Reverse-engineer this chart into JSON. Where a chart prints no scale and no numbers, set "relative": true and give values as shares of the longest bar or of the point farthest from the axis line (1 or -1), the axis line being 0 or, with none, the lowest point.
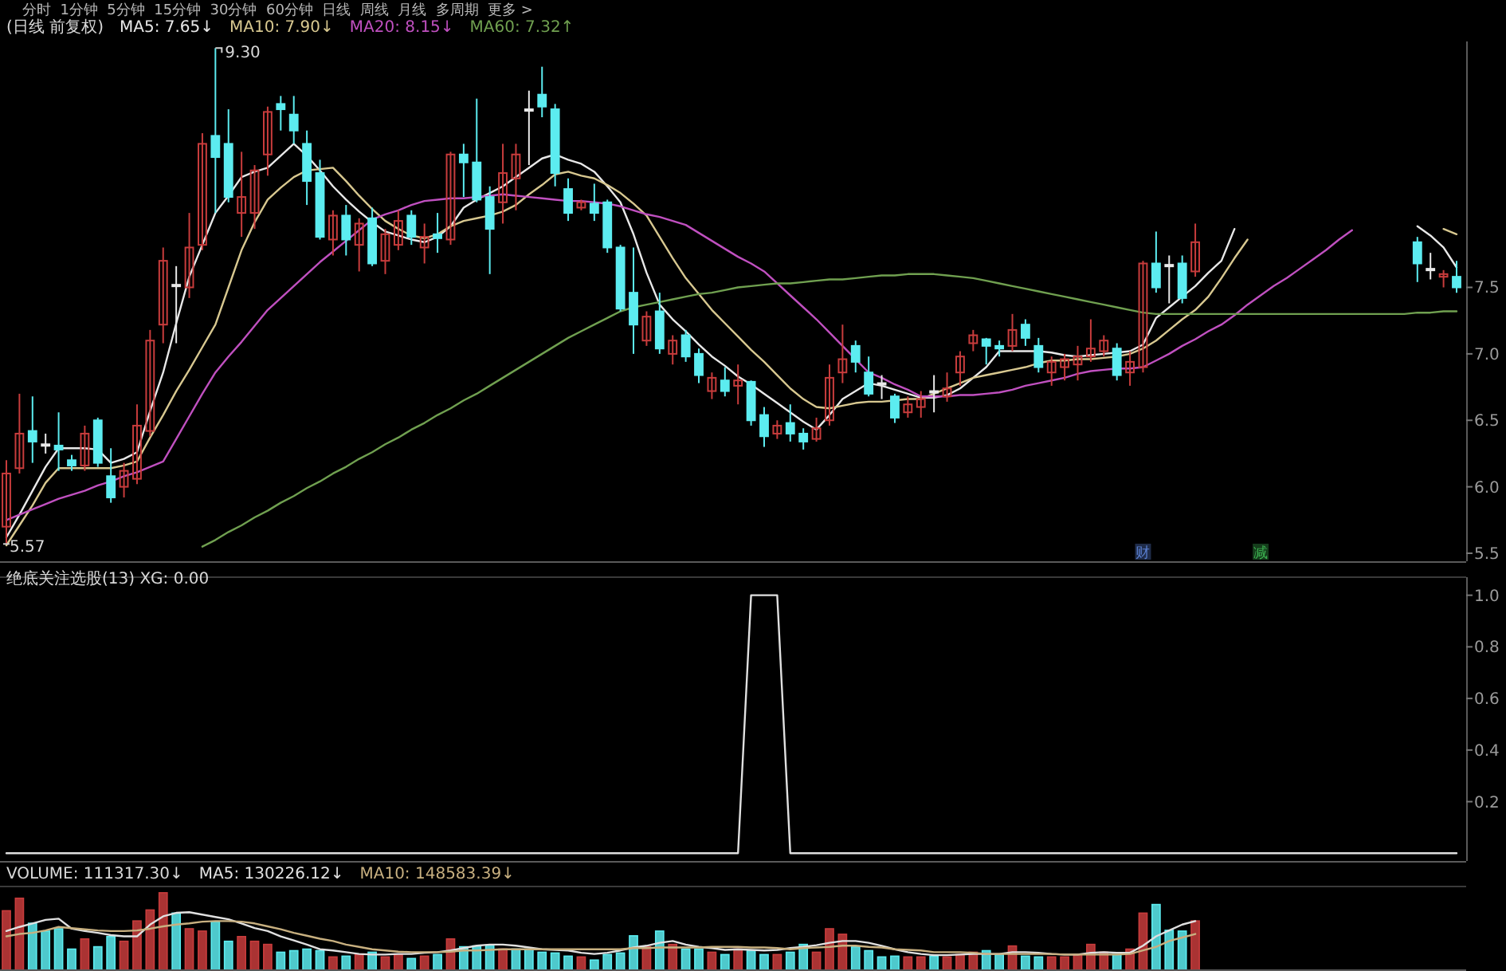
{
  "chart_data": [
    {
      "type": "candlestick",
      "title": "(日线 前复权)",
      "subtitle": "分时  1分钟  5分钟  15分钟  30分钟  60分钟  日线  周线  月线  多周期  更多 >",
      "legend": "top left",
      "tick_labels": "y",
      "categories": [
        null,
        null,
        null,
        null,
        null,
        null,
        null,
        null,
        null,
        null,
        null,
        null,
        null,
        null,
        null,
        null,
        null,
        null,
        null,
        null,
        null,
        null,
        null,
        null,
        null,
        null,
        null,
        null,
        null,
        null,
        null,
        null,
        null,
        null,
        null,
        null,
        null,
        null,
        null,
        null,
        null,
        null,
        null,
        null,
        null,
        null,
        null,
        null,
        null,
        null,
        null,
        null,
        null,
        null,
        null,
        null,
        null,
        null,
        null,
        null,
        null,
        null,
        null,
        null,
        null,
        null,
        null,
        null,
        null,
        null,
        null,
        null,
        null,
        null,
        null,
        null,
        null,
        null,
        null,
        null,
        null,
        null,
        null,
        null,
        null,
        null,
        null,
        null,
        null,
        null,
        null,
        null,
        null,
        null,
        null,
        null,
        null,
        null,
        null,
        null,
        null,
        null,
        null,
        null,
        null,
        null,
        null,
        null,
        null,
        null,
        null,
        null
      ],
      "ylim": [
        5.44,
        9.35
      ],
      "yticks": [
        5.5,
        {
          "value": 6,
          "label": "6.0"
        },
        6.5,
        {
          "value": 7,
          "label": "7.0"
        },
        7.5
      ],
      "ohlc": [
        [
          5.7,
          6.2,
          5.57,
          6.1
        ],
        [
          6.14,
          6.7,
          6.1,
          6.4
        ],
        [
          6.42,
          6.68,
          6.18,
          6.34
        ],
        [
          6.32,
          6.4,
          6.25,
          6.32
        ],
        [
          6.31,
          6.56,
          6.12,
          6.28
        ],
        [
          6.2,
          6.24,
          6.12,
          6.16
        ],
        [
          6.16,
          6.46,
          6.12,
          6.4
        ],
        [
          6.5,
          6.52,
          6.15,
          6.18
        ],
        [
          6.08,
          6.29,
          5.88,
          5.92
        ],
        [
          6.0,
          6.18,
          5.92,
          6.12
        ],
        [
          6.06,
          6.62,
          6.02,
          6.46
        ],
        [
          6.42,
          7.18,
          6.38,
          7.1
        ],
        [
          7.22,
          7.8,
          7.08,
          7.7
        ],
        [
          7.52,
          7.66,
          7.08,
          7.52
        ],
        [
          7.5,
          8.06,
          7.42,
          7.8
        ],
        [
          7.82,
          8.66,
          7.78,
          8.58
        ],
        [
          8.64,
          9.3,
          8.06,
          8.48
        ],
        [
          8.58,
          8.84,
          8.14,
          8.18
        ],
        [
          8.06,
          8.52,
          7.88,
          8.18
        ],
        [
          8.06,
          8.42,
          7.94,
          8.38
        ],
        [
          8.5,
          8.86,
          8.34,
          8.82
        ],
        [
          8.88,
          8.94,
          8.68,
          8.84
        ],
        [
          8.8,
          8.94,
          8.58,
          8.68
        ],
        [
          8.58,
          8.68,
          8.12,
          8.3
        ],
        [
          8.36,
          8.46,
          7.86,
          7.88
        ],
        [
          7.86,
          8.08,
          7.74,
          8.04
        ],
        [
          8.04,
          8.12,
          7.74,
          7.86
        ],
        [
          7.82,
          8.02,
          7.62,
          7.98
        ],
        [
          8.02,
          8.1,
          7.66,
          7.68
        ],
        [
          7.7,
          7.94,
          7.6,
          7.9
        ],
        [
          7.82,
          8.08,
          7.78,
          8.0
        ],
        [
          8.04,
          8.08,
          7.82,
          7.88
        ],
        [
          7.8,
          7.98,
          7.68,
          7.88
        ],
        [
          7.9,
          8.06,
          7.76,
          7.87
        ],
        [
          7.86,
          8.52,
          7.82,
          8.5
        ],
        [
          8.5,
          8.58,
          8.18,
          8.44
        ],
        [
          8.44,
          8.92,
          8.14,
          8.16
        ],
        [
          8.18,
          8.26,
          7.6,
          7.94
        ],
        [
          8.14,
          8.58,
          7.98,
          8.36
        ],
        [
          8.32,
          8.58,
          8.08,
          8.5
        ],
        [
          8.84,
          8.98,
          8.42,
          8.84
        ],
        [
          8.95,
          9.16,
          8.78,
          8.86
        ],
        [
          8.84,
          8.88,
          8.26,
          8.36
        ],
        [
          8.24,
          8.32,
          8.0,
          8.06
        ],
        [
          8.1,
          8.16,
          8.08,
          8.14
        ],
        [
          8.13,
          8.28,
          8.0,
          8.06
        ],
        [
          8.14,
          8.16,
          7.76,
          7.8
        ],
        [
          7.8,
          7.82,
          7.32,
          7.34
        ],
        [
          7.46,
          7.8,
          7.0,
          7.22
        ],
        [
          7.1,
          7.32,
          7.06,
          7.28
        ],
        [
          7.32,
          7.46,
          7.0,
          7.04
        ],
        [
          7.0,
          7.14,
          6.92,
          7.1
        ],
        [
          7.14,
          7.18,
          6.94,
          6.98
        ],
        [
          7.0,
          7.04,
          6.78,
          6.84
        ],
        [
          6.72,
          6.86,
          6.66,
          6.82
        ],
        [
          6.8,
          6.9,
          6.68,
          6.72
        ],
        [
          6.76,
          6.92,
          6.62,
          6.8
        ],
        [
          6.79,
          6.8,
          6.46,
          6.5
        ],
        [
          6.54,
          6.6,
          6.3,
          6.38
        ],
        [
          6.4,
          6.5,
          6.36,
          6.46
        ],
        [
          6.48,
          6.62,
          6.34,
          6.4
        ],
        [
          6.4,
          6.44,
          6.28,
          6.34
        ],
        [
          6.36,
          6.52,
          6.34,
          6.44
        ],
        [
          6.5,
          6.92,
          6.46,
          6.82
        ],
        [
          6.86,
          7.22,
          6.78,
          6.96
        ],
        [
          7.06,
          7.1,
          6.86,
          6.94
        ],
        [
          6.86,
          6.98,
          6.68,
          6.7
        ],
        [
          6.78,
          6.84,
          6.66,
          6.78
        ],
        [
          6.68,
          6.7,
          6.48,
          6.52
        ],
        [
          6.56,
          6.68,
          6.52,
          6.62
        ],
        [
          6.6,
          6.72,
          6.52,
          6.66
        ],
        [
          6.72,
          6.84,
          6.56,
          6.72
        ],
        [
          6.68,
          6.86,
          6.64,
          6.74
        ],
        [
          6.86,
          7.02,
          6.76,
          6.98
        ],
        [
          7.08,
          7.18,
          7.02,
          7.14
        ],
        [
          7.11,
          7.12,
          6.92,
          7.06
        ],
        [
          7.06,
          7.1,
          6.98,
          7.04
        ],
        [
          7.06,
          7.3,
          7.02,
          7.18
        ],
        [
          7.22,
          7.26,
          7.06,
          7.12
        ],
        [
          7.06,
          7.12,
          6.86,
          6.9
        ],
        [
          6.86,
          6.98,
          6.76,
          6.94
        ],
        [
          6.9,
          7.0,
          6.8,
          6.96
        ],
        [
          6.92,
          7.06,
          6.8,
          6.98
        ],
        [
          6.98,
          7.26,
          6.94,
          7.04
        ],
        [
          7.02,
          7.14,
          6.98,
          7.1
        ],
        [
          7.04,
          7.08,
          6.8,
          6.84
        ],
        [
          6.86,
          7.02,
          6.76,
          6.94
        ],
        [
          6.9,
          7.7,
          6.86,
          7.68
        ],
        [
          7.68,
          7.92,
          7.46,
          7.5
        ],
        [
          7.67,
          7.74,
          7.38,
          7.67
        ],
        [
          7.68,
          7.74,
          7.38,
          7.42
        ],
        [
          7.62,
          7.98,
          7.58,
          7.84
        ],
        null,
        null,
        null,
        null,
        null,
        null,
        null,
        null,
        null,
        null,
        null,
        null,
        null,
        null,
        null,
        null,
        [
          7.84,
          7.88,
          7.54,
          7.68
        ],
        [
          7.64,
          7.76,
          7.56,
          7.64
        ],
        [
          7.58,
          7.63,
          7.5,
          7.6
        ],
        [
          7.58,
          7.7,
          7.46,
          7.5
        ]
      ],
      "colors": [
        "#c83c3c",
        "#c83c3c",
        "#5cecf0",
        "#e8e8e8",
        "#5cecf0",
        "#5cecf0",
        "#c83c3c",
        "#5cecf0",
        "#5cecf0",
        "#c83c3c",
        "#c83c3c",
        "#c83c3c",
        "#c83c3c",
        "#e8e8e8",
        "#c83c3c",
        "#c83c3c",
        "#5cecf0",
        "#5cecf0",
        "#c83c3c",
        "#c83c3c",
        "#c83c3c",
        "#5cecf0",
        "#5cecf0",
        "#5cecf0",
        "#5cecf0",
        "#c83c3c",
        "#5cecf0",
        "#c83c3c",
        "#5cecf0",
        "#c83c3c",
        "#c83c3c",
        "#5cecf0",
        "#c83c3c",
        "#5cecf0",
        "#c83c3c",
        "#5cecf0",
        "#5cecf0",
        "#5cecf0",
        "#c83c3c",
        "#c83c3c",
        "#e8e8e8",
        "#5cecf0",
        "#5cecf0",
        "#5cecf0",
        "#c83c3c",
        "#5cecf0",
        "#5cecf0",
        "#5cecf0",
        "#5cecf0",
        "#c83c3c",
        "#5cecf0",
        "#c83c3c",
        "#5cecf0",
        "#5cecf0",
        "#c83c3c",
        "#5cecf0",
        "#c83c3c",
        "#5cecf0",
        "#5cecf0",
        "#c83c3c",
        "#5cecf0",
        "#5cecf0",
        "#c83c3c",
        "#c83c3c",
        "#c83c3c",
        "#5cecf0",
        "#5cecf0",
        "#e8e8e8",
        "#5cecf0",
        "#c83c3c",
        "#c83c3c",
        "#e8e8e8",
        "#c83c3c",
        "#c83c3c",
        "#c83c3c",
        "#5cecf0",
        "#5cecf0",
        "#c83c3c",
        "#5cecf0",
        "#5cecf0",
        "#c83c3c",
        "#c83c3c",
        "#c83c3c",
        "#c83c3c",
        "#c83c3c",
        "#5cecf0",
        "#c83c3c",
        "#c83c3c",
        "#5cecf0",
        "#e8e8e8",
        "#5cecf0",
        "#c83c3c",
        null,
        null,
        null,
        null,
        null,
        null,
        null,
        null,
        null,
        null,
        null,
        null,
        null,
        null,
        null,
        null,
        "#5cecf0",
        "#e8e8e8",
        "#c83c3c",
        "#5cecf0"
      ],
      "series": [
        {
          "name": "MA5: 7.65↓",
          "type": "line",
          "color": "#e8e8e8",
          "values": [
            5.62,
            5.79,
            5.97,
            6.15,
            6.29,
            6.29,
            6.29,
            6.28,
            6.18,
            6.21,
            6.26,
            6.57,
            6.86,
            7.23,
            7.58,
            7.82,
            8.06,
            8.19,
            8.33,
            8.37,
            8.4,
            8.49,
            8.58,
            8.49,
            8.38,
            8.26,
            8.16,
            8.07,
            7.99,
            7.92,
            7.89,
            7.86,
            7.84,
            7.88,
            7.96,
            8.1,
            8.16,
            8.21,
            8.26,
            8.33,
            8.4,
            8.47,
            8.5,
            8.46,
            8.43,
            8.37,
            8.26,
            8.14,
            7.9,
            7.61,
            7.37,
            7.26,
            7.17,
            7.07,
            6.98,
            6.91,
            6.83,
            6.77,
            6.7,
            6.63,
            6.56,
            6.49,
            6.43,
            6.54,
            6.66,
            6.72,
            6.78,
            6.76,
            6.73,
            6.7,
            6.67,
            6.67,
            6.69,
            6.74,
            6.82,
            6.9,
            7.02,
            7.02,
            7.02,
            7.02,
            7.01,
            6.99,
            6.98,
            6.99,
            7.0,
            7.01,
            7.02,
            7.07,
            7.27,
            7.35,
            7.43,
            7.51,
            7.61,
            7.7,
            7.94,
            null,
            null,
            null,
            null,
            null,
            null,
            null,
            null,
            null,
            null,
            null,
            null,
            null,
            7.96,
            7.89,
            7.8,
            7.65
          ]
        },
        {
          "name": "MA10: 7.90↓",
          "type": "line",
          "color": "#d8c890",
          "values": [
            5.56,
            5.71,
            5.86,
            6.03,
            6.14,
            6.14,
            6.14,
            6.14,
            6.14,
            6.16,
            6.19,
            6.37,
            6.54,
            6.72,
            6.88,
            7.05,
            7.22,
            7.5,
            7.78,
            7.99,
            8.16,
            8.25,
            8.33,
            8.38,
            8.39,
            8.4,
            8.3,
            8.19,
            8.09,
            8.0,
            7.94,
            7.89,
            7.87,
            7.9,
            7.96,
            8.0,
            8.02,
            8.04,
            8.07,
            8.12,
            8.2,
            8.27,
            8.35,
            8.37,
            8.34,
            8.32,
            8.27,
            8.21,
            8.13,
            8.04,
            7.88,
            7.72,
            7.57,
            7.45,
            7.33,
            7.23,
            7.13,
            7.03,
            6.94,
            6.84,
            6.74,
            6.66,
            6.6,
            6.59,
            6.61,
            6.63,
            6.64,
            6.64,
            6.65,
            6.66,
            6.66,
            6.7,
            6.74,
            6.78,
            6.82,
            6.84,
            6.86,
            6.88,
            6.9,
            6.93,
            6.95,
            6.95,
            6.96,
            6.96,
            6.97,
            6.98,
            7.0,
            7.04,
            7.1,
            7.18,
            7.26,
            7.33,
            7.43,
            7.57,
            7.72,
            7.86,
            null,
            null,
            null,
            null,
            null,
            null,
            null,
            null,
            null,
            null,
            null,
            null,
            null,
            null,
            7.94,
            7.9
          ]
        },
        {
          "name": "MA20: 8.15↓",
          "type": "line",
          "color": "#c050c0",
          "values": [
            5.75,
            5.79,
            5.83,
            5.87,
            5.91,
            5.94,
            5.97,
            6.01,
            6.04,
            6.08,
            6.11,
            6.15,
            6.19,
            6.36,
            6.53,
            6.7,
            6.86,
            6.98,
            7.09,
            7.21,
            7.33,
            7.42,
            7.51,
            7.6,
            7.69,
            7.77,
            7.85,
            7.93,
            8.01,
            8.05,
            8.08,
            8.12,
            8.15,
            8.16,
            8.17,
            8.17,
            8.18,
            8.19,
            8.2,
            8.19,
            8.18,
            8.17,
            8.16,
            8.15,
            8.15,
            8.14,
            8.13,
            8.11,
            8.08,
            8.05,
            8.03,
            8.0,
            7.97,
            7.91,
            7.85,
            7.79,
            7.73,
            7.68,
            7.62,
            7.53,
            7.44,
            7.35,
            7.26,
            7.16,
            7.06,
            6.96,
            6.86,
            6.82,
            6.77,
            6.73,
            6.68,
            6.68,
            6.68,
            6.69,
            6.69,
            6.7,
            6.71,
            6.73,
            6.76,
            6.78,
            6.8,
            6.82,
            6.85,
            6.87,
            6.88,
            6.89,
            6.89,
            6.9,
            6.95,
            7.0,
            7.06,
            7.11,
            7.17,
            7.22,
            7.29,
            7.37,
            7.44,
            7.51,
            7.57,
            7.64,
            7.71,
            7.78,
            7.86,
            7.93,
            null,
            null,
            null,
            null,
            null,
            null,
            null,
            null
          ]
        },
        {
          "name": "MA60: 7.32↑",
          "type": "line",
          "color": "#70a050",
          "values": [
            null,
            null,
            null,
            null,
            null,
            null,
            null,
            null,
            null,
            null,
            null,
            null,
            null,
            null,
            null,
            5.55,
            5.6,
            5.66,
            5.71,
            5.77,
            5.82,
            5.88,
            5.93,
            5.99,
            6.04,
            6.1,
            6.15,
            6.21,
            6.26,
            6.32,
            6.37,
            6.43,
            6.48,
            6.54,
            6.59,
            6.65,
            6.7,
            6.76,
            6.82,
            6.88,
            6.94,
            7.0,
            7.06,
            7.12,
            7.17,
            7.22,
            7.27,
            7.32,
            7.35,
            7.37,
            7.39,
            7.41,
            7.43,
            7.45,
            7.46,
            7.48,
            7.5,
            7.51,
            7.52,
            7.53,
            7.53,
            7.54,
            7.55,
            7.56,
            7.56,
            7.57,
            7.58,
            7.59,
            7.59,
            7.6,
            7.6,
            7.6,
            7.59,
            7.58,
            7.57,
            7.55,
            7.53,
            7.51,
            7.49,
            7.47,
            7.45,
            7.43,
            7.41,
            7.39,
            7.37,
            7.35,
            7.33,
            7.31,
            7.3,
            7.3,
            7.3,
            7.3,
            7.3,
            7.3,
            7.3,
            7.3,
            7.3,
            7.3,
            7.3,
            7.3,
            7.3,
            7.3,
            7.3,
            7.3,
            7.3,
            7.3,
            7.3,
            7.3,
            7.31,
            7.31,
            7.32,
            7.32
          ]
        }
      ],
      "annotations": [
        "9.30",
        "5.57",
        "财",
        "减"
      ]
    },
    {
      "type": "line",
      "title": "绝底关注选股(13) XG: 0.00",
      "tick_labels": "y",
      "categories": [
        null,
        null,
        null,
        null,
        null,
        null,
        null,
        null,
        null,
        null,
        null,
        null,
        null,
        null,
        null,
        null,
        null,
        null,
        null,
        null,
        null,
        null,
        null,
        null,
        null,
        null,
        null,
        null,
        null,
        null,
        null,
        null,
        null,
        null,
        null,
        null,
        null,
        null,
        null,
        null,
        null,
        null,
        null,
        null,
        null,
        null,
        null,
        null,
        null,
        null,
        null,
        null,
        null,
        null,
        null,
        null,
        null,
        null,
        null,
        null,
        null,
        null,
        null,
        null,
        null,
        null,
        null,
        null,
        null,
        null,
        null,
        null,
        null,
        null,
        null,
        null,
        null,
        null,
        null,
        null,
        null,
        null,
        null,
        null,
        null,
        null,
        null,
        null,
        null,
        null,
        null,
        null,
        null,
        null,
        null,
        null,
        null,
        null,
        null,
        null,
        null,
        null,
        null,
        null,
        null,
        null,
        null,
        null,
        null,
        null,
        null,
        null
      ],
      "ylim": [
        -0.03,
        1.07
      ],
      "yticks": [
        0.2,
        0.4,
        0.6,
        0.8,
        {
          "value": 1,
          "label": "1.0"
        }
      ],
      "series": [
        {
          "color": "#e0e0e0",
          "values": [
            0,
            0,
            0,
            0,
            0,
            0,
            0,
            0,
            0,
            0,
            0,
            0,
            0,
            0,
            0,
            0,
            0,
            0,
            0,
            0,
            0,
            0,
            0,
            0,
            0,
            0,
            0,
            0,
            0,
            0,
            0,
            0,
            0,
            0,
            0,
            0,
            0,
            0,
            0,
            0,
            0,
            0,
            0,
            0,
            0,
            0,
            0,
            0,
            0,
            0,
            0,
            0,
            0,
            0,
            0,
            0,
            0,
            1,
            1,
            1,
            0,
            0,
            0,
            0,
            0,
            0,
            0,
            0,
            0,
            0,
            0,
            0,
            0,
            0,
            0,
            0,
            0,
            0,
            0,
            0,
            0,
            0,
            0,
            0,
            0,
            0,
            0,
            0,
            0,
            0,
            0,
            0,
            0,
            0,
            0,
            0,
            0,
            0,
            0,
            0,
            0,
            0,
            0,
            0,
            0,
            0,
            0,
            0,
            0,
            0,
            0,
            0
          ]
        }
      ]
    },
    {
      "type": "bar",
      "relative": true,
      "title": "VOLUME: 111317.30↓",
      "categories": [
        null,
        null,
        null,
        null,
        null,
        null,
        null,
        null,
        null,
        null,
        null,
        null,
        null,
        null,
        null,
        null,
        null,
        null,
        null,
        null,
        null,
        null,
        null,
        null,
        null,
        null,
        null,
        null,
        null,
        null,
        null,
        null,
        null,
        null,
        null,
        null,
        null,
        null,
        null,
        null,
        null,
        null,
        null,
        null,
        null,
        null,
        null,
        null,
        null,
        null,
        null,
        null,
        null,
        null,
        null,
        null,
        null,
        null,
        null,
        null,
        null,
        null,
        null,
        null,
        null,
        null,
        null,
        null,
        null,
        null,
        null,
        null,
        null,
        null,
        null,
        null,
        null,
        null,
        null,
        null,
        null,
        null,
        null,
        null,
        null,
        null,
        null,
        null,
        null,
        null,
        null,
        null
      ],
      "series": [
        {
          "type": "bar",
          "values": [
            0.77,
            0.93,
            0.61,
            0.51,
            0.54,
            0.28,
            0.41,
            0.31,
            0.44,
            0.38,
            0.64,
            0.78,
            1,
            0.74,
            0.54,
            0.51,
            0.63,
            0.38,
            0.44,
            0.38,
            0.34,
            0.24,
            0.26,
            0.28,
            0.26,
            0.18,
            0.19,
            0.21,
            0.24,
            0.18,
            0.21,
            0.16,
            0.19,
            0.21,
            0.41,
            0.31,
            0.32,
            0.33,
            0.28,
            0.28,
            0.28,
            0.24,
            0.23,
            0.19,
            0.18,
            0.14,
            0.21,
            0.23,
            0.45,
            0.31,
            0.51,
            0.34,
            0.28,
            0.28,
            0.24,
            0.21,
            0.28,
            0.26,
            0.21,
            0.21,
            0.24,
            0.34,
            0.24,
            0.54,
            0.47,
            0.31,
            0.26,
            0.18,
            0.19,
            0.18,
            0.18,
            0.19,
            0.18,
            0.21,
            0.24,
            0.26,
            0.21,
            0.32,
            0.19,
            0.18,
            0.18,
            0.18,
            0.21,
            0.34,
            0.24,
            0.21,
            0.28,
            0.74,
            0.85,
            0.52,
            0.51,
            0.64
          ],
          "colors": [
            "#c83c3c",
            "#c83c3c",
            "#5cecf0",
            "#5cecf0",
            "#5cecf0",
            "#5cecf0",
            "#c83c3c",
            "#5cecf0",
            "#5cecf0",
            "#c83c3c",
            "#c83c3c",
            "#c83c3c",
            "#c83c3c",
            "#5cecf0",
            "#c83c3c",
            "#c83c3c",
            "#5cecf0",
            "#5cecf0",
            "#c83c3c",
            "#c83c3c",
            "#c83c3c",
            "#5cecf0",
            "#5cecf0",
            "#5cecf0",
            "#5cecf0",
            "#c83c3c",
            "#5cecf0",
            "#c83c3c",
            "#5cecf0",
            "#c83c3c",
            "#c83c3c",
            "#5cecf0",
            "#c83c3c",
            "#5cecf0",
            "#c83c3c",
            "#5cecf0",
            "#5cecf0",
            "#5cecf0",
            "#c83c3c",
            "#5cecf0",
            "#5cecf0",
            "#5cecf0",
            "#5cecf0",
            "#5cecf0",
            "#c83c3c",
            "#5cecf0",
            "#5cecf0",
            "#5cecf0",
            "#5cecf0",
            "#c83c3c",
            "#5cecf0",
            "#c83c3c",
            "#5cecf0",
            "#5cecf0",
            "#c83c3c",
            "#5cecf0",
            "#c83c3c",
            "#5cecf0",
            "#5cecf0",
            "#c83c3c",
            "#5cecf0",
            "#5cecf0",
            "#c83c3c",
            "#c83c3c",
            "#c83c3c",
            "#5cecf0",
            "#5cecf0",
            "#5cecf0",
            "#5cecf0",
            "#c83c3c",
            "#c83c3c",
            "#5cecf0",
            "#c83c3c",
            "#c83c3c",
            "#c83c3c",
            "#5cecf0",
            "#5cecf0",
            "#c83c3c",
            "#5cecf0",
            "#5cecf0",
            "#c83c3c",
            "#c83c3c",
            "#c83c3c",
            "#c83c3c",
            "#c83c3c",
            "#5cecf0",
            "#c83c3c",
            "#c83c3c",
            "#5cecf0",
            "#5cecf0",
            "#5cecf0",
            "#c83c3c"
          ]
        }
      ]
    },
    {
      "type": "line",
      "relative": true,
      "legend": "top left",
      "categories": [
        null,
        null,
        null,
        null,
        null,
        null,
        null,
        null,
        null,
        null,
        null,
        null,
        null,
        null,
        null,
        null,
        null,
        null,
        null,
        null,
        null,
        null,
        null,
        null,
        null,
        null,
        null,
        null,
        null,
        null,
        null,
        null,
        null,
        null,
        null,
        null,
        null,
        null,
        null,
        null,
        null,
        null,
        null,
        null,
        null,
        null,
        null,
        null,
        null,
        null,
        null,
        null,
        null,
        null,
        null,
        null,
        null,
        null,
        null,
        null,
        null,
        null,
        null,
        null,
        null,
        null,
        null,
        null,
        null,
        null,
        null,
        null,
        null,
        null,
        null,
        null,
        null,
        null,
        null,
        null,
        null,
        null,
        null,
        null,
        null,
        null,
        null,
        null,
        null,
        null,
        null,
        null
      ],
      "series": [
        {
          "name": "MA5: 130226.12↓",
          "color": "#e0e0e0",
          "values": [
            0.68,
            0.75,
            0.81,
            0.87,
            0.89,
            0.72,
            0.68,
            0.65,
            0.61,
            0.59,
            0.59,
            0.79,
            0.93,
            0.99,
            1,
            0.96,
            0.92,
            0.88,
            0.81,
            0.73,
            0.68,
            0.59,
            0.52,
            0.45,
            0.37,
            0.35,
            0.32,
            0.29,
            0.28,
            0.28,
            0.29,
            0.29,
            0.31,
            0.32,
            0.35,
            0.39,
            0.43,
            0.45,
            0.45,
            0.43,
            0.4,
            0.37,
            0.36,
            0.35,
            0.31,
            0.29,
            0.31,
            0.35,
            0.4,
            0.43,
            0.48,
            0.51,
            0.45,
            0.41,
            0.39,
            0.36,
            0.37,
            0.36,
            0.35,
            0.36,
            0.39,
            0.41,
            0.44,
            0.48,
            0.51,
            0.51,
            0.48,
            0.43,
            0.37,
            0.32,
            0.29,
            0.27,
            0.27,
            0.28,
            0.29,
            0.29,
            0.29,
            0.32,
            0.32,
            0.31,
            0.29,
            0.28,
            0.28,
            0.31,
            0.32,
            0.31,
            0.31,
            0.43,
            0.59,
            0.69,
            0.79,
            0.85
          ]
        },
        {
          "name": "MA10: 148583.39↓",
          "color": "#c8b080",
          "values": [
            0.59,
            0.63,
            0.65,
            0.69,
            0.75,
            0.73,
            0.71,
            0.69,
            0.68,
            0.68,
            0.69,
            0.72,
            0.76,
            0.79,
            0.81,
            0.84,
            0.85,
            0.85,
            0.84,
            0.81,
            0.76,
            0.71,
            0.65,
            0.6,
            0.55,
            0.51,
            0.45,
            0.41,
            0.37,
            0.35,
            0.33,
            0.32,
            0.32,
            0.32,
            0.33,
            0.35,
            0.35,
            0.36,
            0.37,
            0.37,
            0.37,
            0.37,
            0.37,
            0.37,
            0.37,
            0.37,
            0.37,
            0.37,
            0.39,
            0.39,
            0.4,
            0.4,
            0.4,
            0.4,
            0.41,
            0.41,
            0.41,
            0.4,
            0.4,
            0.39,
            0.37,
            0.39,
            0.4,
            0.41,
            0.43,
            0.43,
            0.41,
            0.4,
            0.37,
            0.36,
            0.35,
            0.32,
            0.32,
            0.32,
            0.31,
            0.29,
            0.29,
            0.29,
            0.29,
            0.29,
            0.29,
            0.28,
            0.28,
            0.28,
            0.28,
            0.28,
            0.29,
            0.35,
            0.41,
            0.51,
            0.57,
            0.63
          ]
        }
      ]
    }
  ]
}
